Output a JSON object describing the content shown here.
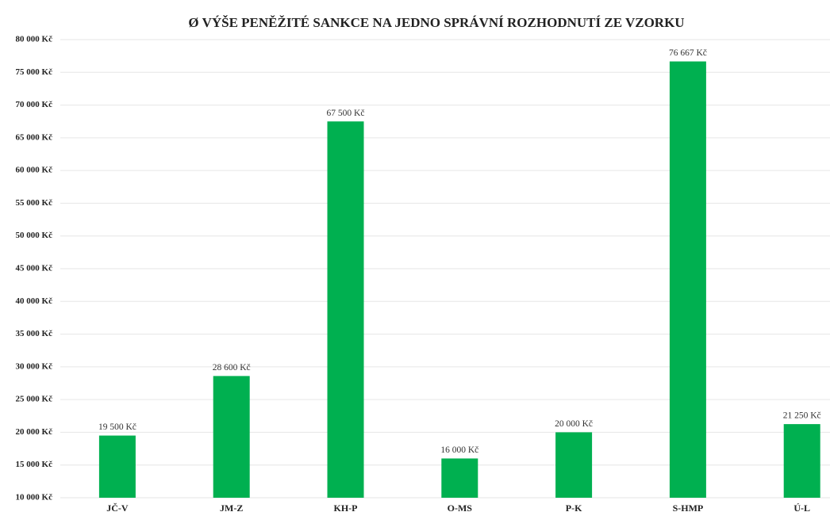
{
  "chart_data": {
    "type": "bar",
    "title": "Ø VÝŠE PENĚŽITÉ SANKCE NA JEDNO SPRÁVNÍ ROZHODNUTÍ ZE VZORKU",
    "categories": [
      "JČ-V",
      "JM-Z",
      "KH-P",
      "O-MS",
      "P-K",
      "S-HMP",
      "Ú-L"
    ],
    "values": [
      19500,
      28600,
      67500,
      16000,
      20000,
      76667,
      21250
    ],
    "value_labels": [
      "19 500 Kč",
      "28 600 Kč",
      "67 500 Kč",
      "16 000 Kč",
      "20 000 Kč",
      "76 667 Kč",
      "21 250 Kč"
    ],
    "color": "#00b050",
    "ylim": [
      10000,
      80000
    ],
    "yticks": [
      {
        "value": 10000,
        "label": "10 000 Kč"
      },
      {
        "value": 15000,
        "label": "15 000 Kč"
      },
      {
        "value": 20000,
        "label": "20 000 Kč"
      },
      {
        "value": 25000,
        "label": "25 000 Kč"
      },
      {
        "value": 30000,
        "label": "30 000 Kč"
      },
      {
        "value": 35000,
        "label": "35 000 Kč"
      },
      {
        "value": 40000,
        "label": "40 000 Kč"
      },
      {
        "value": 45000,
        "label": "45 000 Kč"
      },
      {
        "value": 50000,
        "label": "50 000 Kč"
      },
      {
        "value": 55000,
        "label": "55 000 Kč"
      },
      {
        "value": 60000,
        "label": "60 000 Kč"
      },
      {
        "value": 65000,
        "label": "65 000 Kč"
      },
      {
        "value": 70000,
        "label": "70 000 Kč"
      },
      {
        "value": 75000,
        "label": "75 000 Kč"
      },
      {
        "value": 80000,
        "label": "80 000 Kč"
      }
    ],
    "grid": true
  }
}
